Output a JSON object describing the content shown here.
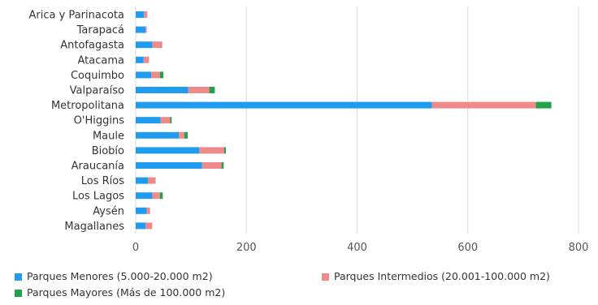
{
  "chart_data": {
    "type": "bar",
    "orientation": "horizontal",
    "stacked": true,
    "categories": [
      "Arica y Parinacota",
      "Tarapacá",
      "Antofagasta",
      "Atacama",
      "Coquimbo",
      "Valparaíso",
      "Metropolitana",
      "O'Higgins",
      "Maule",
      "Biobío",
      "Araucanía",
      "Los Ríos",
      "Los Lagos",
      "Aysén",
      "Magallanes"
    ],
    "series": [
      {
        "name": "Parques Menores (5.000-20.000 m2)",
        "color": "#1f9bf0",
        "values": [
          15,
          18,
          30,
          14,
          28,
          95,
          535,
          45,
          78,
          115,
          120,
          22,
          30,
          20,
          18
        ]
      },
      {
        "name": "Parques Intermedios (20.001-100.000 m2)",
        "color": "#f08a8a",
        "values": [
          6,
          2,
          18,
          10,
          16,
          38,
          188,
          17,
          10,
          45,
          35,
          14,
          14,
          6,
          12
        ]
      },
      {
        "name": "Parques Mayores (Más de 100.000 m2)",
        "color": "#22a34a",
        "values": [
          0,
          0,
          0,
          0,
          6,
          10,
          28,
          3,
          6,
          3,
          4,
          0,
          5,
          0,
          0
        ]
      }
    ],
    "xlim": [
      0,
      800
    ],
    "xticks": [
      "0",
      "200",
      "400",
      "600",
      "800"
    ],
    "grid": "vertical",
    "legend_position": "bottom",
    "title": "",
    "xlabel": "",
    "ylabel": ""
  }
}
